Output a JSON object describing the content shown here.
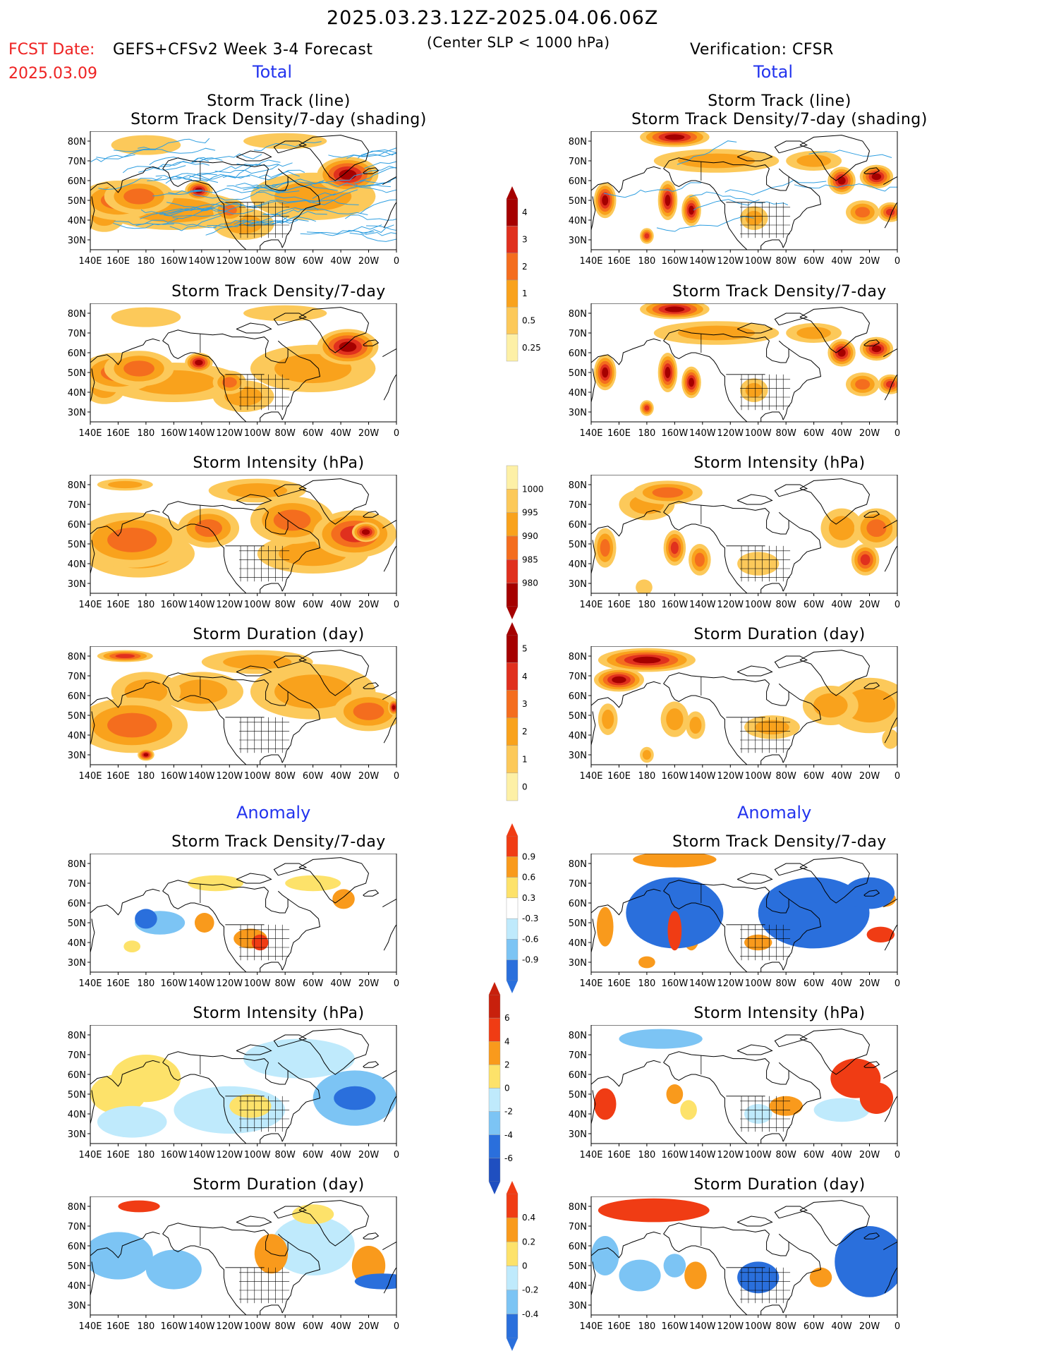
{
  "header": {
    "date_range": "2025.03.23.12Z-2025.04.06.06Z",
    "fcst_label": "FCST Date:",
    "fcst_date": "2025.03.09",
    "model": "GEFS+CFSv2 Week 3-4 Forecast",
    "criterion": "(Center SLP < 1000 hPa)",
    "verification": "Verification: CFSR"
  },
  "sections": {
    "total": "Total",
    "anomaly": "Anomaly"
  },
  "panel_titles": {
    "track_line": "Storm Track (line)",
    "track_density_shading": "Storm Track Density/7-day (shading)",
    "track_density": "Storm Track Density/7-day",
    "intensity": "Storm Intensity (hPa)",
    "duration": "Storm Duration (day)"
  },
  "axes": {
    "lat_labels": [
      "80N",
      "70N",
      "60N",
      "50N",
      "40N",
      "30N"
    ],
    "lon_labels": [
      "140E",
      "160E",
      "180",
      "160W",
      "140W",
      "120W",
      "100W",
      "80W",
      "60W",
      "40W",
      "20W",
      "0"
    ]
  },
  "colorbars": {
    "density": {
      "labels": [
        "4",
        "3",
        "2",
        "1",
        "0.5",
        "0.25"
      ],
      "colors": [
        "#a50000",
        "#e0301e",
        "#f46d1e",
        "#f9a21c",
        "#fcc95a",
        "#fdf0a6"
      ]
    },
    "intensity": {
      "labels": [
        "1000",
        "995",
        "990",
        "985",
        "980"
      ],
      "colors": [
        "#fdf0a6",
        "#fcc95a",
        "#f9a21c",
        "#f46d1e",
        "#e0301e",
        "#a50000"
      ]
    },
    "duration": {
      "labels": [
        "5",
        "4",
        "3",
        "2",
        "1",
        "0"
      ],
      "colors": [
        "#a50000",
        "#e0301e",
        "#f46d1e",
        "#f9a21c",
        "#fcc95a",
        "#fdf0a6"
      ]
    },
    "anom_density": {
      "labels": [
        "0.9",
        "0.6",
        "0.3",
        "-0.3",
        "-0.6",
        "-0.9"
      ],
      "colors": [
        "#f03c14",
        "#f99a1c",
        "#fde26a",
        "#ffffff",
        "#bfeafc",
        "#7cc4f4",
        "#2a6fdc"
      ]
    },
    "anom_intensity": {
      "labels": [
        "6",
        "4",
        "2",
        "0",
        "-2",
        "-4",
        "-6"
      ],
      "colors": [
        "#c8200c",
        "#f03c14",
        "#f99a1c",
        "#fde26a",
        "#bfeafc",
        "#7cc4f4",
        "#2a6fdc",
        "#1f4fc0"
      ]
    },
    "anom_duration": {
      "labels": [
        "0.4",
        "0.2",
        "0",
        "-0.2",
        "-0.4"
      ],
      "colors": [
        "#f03c14",
        "#f99a1c",
        "#fde26a",
        "#bfeafc",
        "#7cc4f4",
        "#2a6fdc"
      ]
    }
  },
  "colors": {
    "track_line": "#2e9ee0",
    "land_outline": "#000000"
  }
}
